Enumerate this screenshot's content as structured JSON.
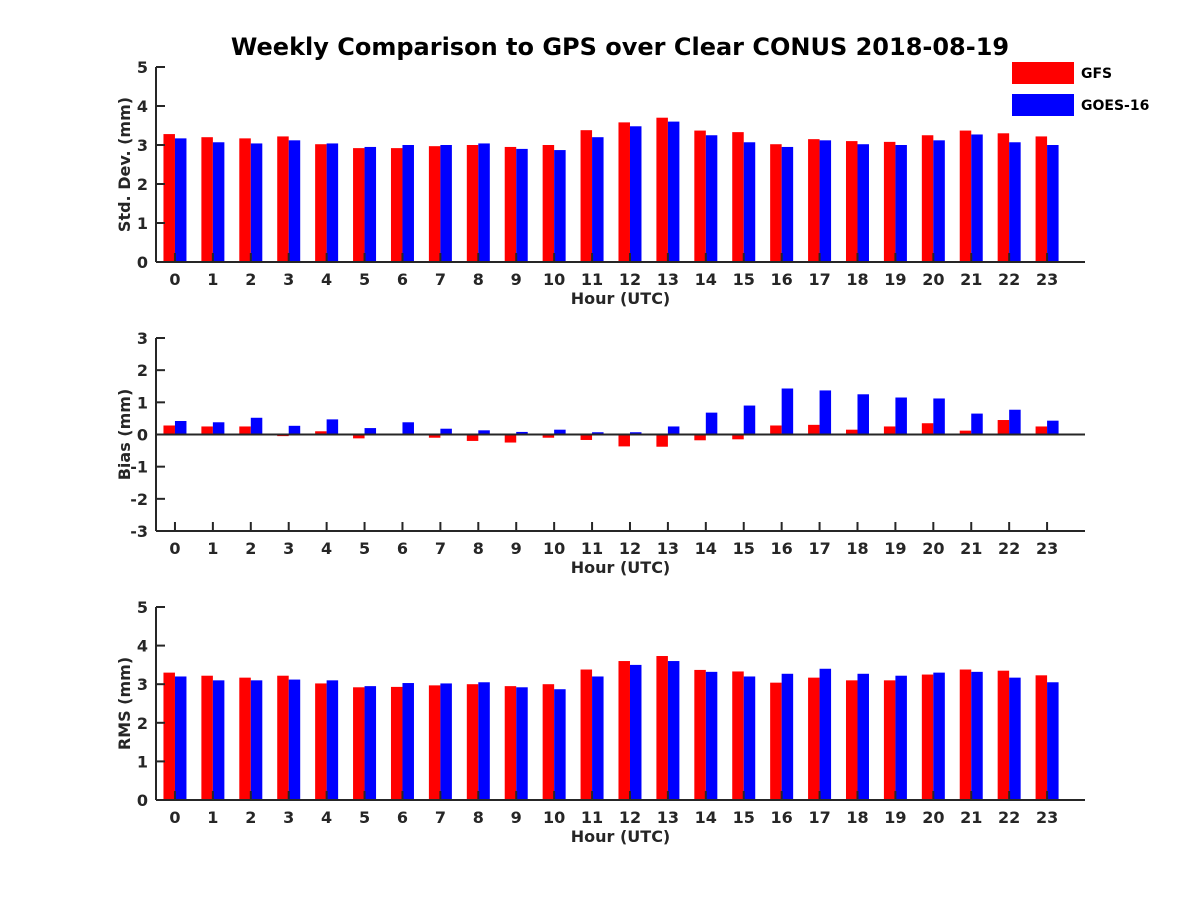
{
  "title": "Weekly Comparison to GPS over Clear CONUS 2018-08-19",
  "colors": {
    "GFS": "#ff0000",
    "GOES-16": "#0000ff",
    "axis": "#262626"
  },
  "legend": [
    {
      "name": "GFS",
      "color": "#ff0000"
    },
    {
      "name": "GOES-16",
      "color": "#0000ff"
    }
  ],
  "chart_data": [
    {
      "type": "bar",
      "xlabel": "Hour (UTC)",
      "ylabel": "Std. Dev. (mm)",
      "ylim": [
        0,
        5
      ],
      "yticks": [
        0,
        1,
        2,
        3,
        4,
        5
      ],
      "categories": [
        "0",
        "1",
        "2",
        "3",
        "4",
        "5",
        "6",
        "7",
        "8",
        "9",
        "10",
        "11",
        "12",
        "13",
        "14",
        "15",
        "16",
        "17",
        "18",
        "19",
        "20",
        "21",
        "22",
        "23"
      ],
      "series": [
        {
          "name": "GFS",
          "values": [
            3.28,
            3.2,
            3.17,
            3.22,
            3.02,
            2.92,
            2.92,
            2.97,
            3.0,
            2.95,
            3.0,
            3.38,
            3.58,
            3.7,
            3.37,
            3.33,
            3.02,
            3.15,
            3.1,
            3.08,
            3.25,
            3.37,
            3.3,
            3.22
          ]
        },
        {
          "name": "GOES-16",
          "values": [
            3.17,
            3.07,
            3.04,
            3.12,
            3.04,
            2.95,
            3.0,
            3.0,
            3.04,
            2.9,
            2.87,
            3.2,
            3.48,
            3.6,
            3.25,
            3.07,
            2.95,
            3.12,
            3.02,
            3.0,
            3.12,
            3.27,
            3.07,
            3.0
          ]
        }
      ],
      "legend": "top-right"
    },
    {
      "type": "bar",
      "xlabel": "Hour (UTC)",
      "ylabel": "Bias (mm)",
      "ylim": [
        -3,
        3
      ],
      "yticks": [
        -3,
        -2,
        -1,
        0,
        1,
        2,
        3
      ],
      "categories": [
        "0",
        "1",
        "2",
        "3",
        "4",
        "5",
        "6",
        "7",
        "8",
        "9",
        "10",
        "11",
        "12",
        "13",
        "14",
        "15",
        "16",
        "17",
        "18",
        "19",
        "20",
        "21",
        "22",
        "23"
      ],
      "series": [
        {
          "name": "GFS",
          "values": [
            0.28,
            0.25,
            0.25,
            -0.05,
            0.1,
            -0.12,
            0.0,
            -0.1,
            -0.2,
            -0.25,
            -0.1,
            -0.17,
            -0.37,
            -0.38,
            -0.18,
            -0.15,
            0.28,
            0.3,
            0.15,
            0.25,
            0.35,
            0.12,
            0.45,
            0.25
          ]
        },
        {
          "name": "GOES-16",
          "values": [
            0.42,
            0.38,
            0.52,
            0.27,
            0.47,
            0.2,
            0.38,
            0.18,
            0.13,
            0.08,
            0.15,
            0.07,
            0.07,
            0.25,
            0.68,
            0.9,
            1.43,
            1.37,
            1.25,
            1.15,
            1.12,
            0.65,
            0.77,
            0.43
          ]
        }
      ]
    },
    {
      "type": "bar",
      "xlabel": "Hour (UTC)",
      "ylabel": "RMS (mm)",
      "ylim": [
        0,
        5
      ],
      "yticks": [
        0,
        1,
        2,
        3,
        4,
        5
      ],
      "categories": [
        "0",
        "1",
        "2",
        "3",
        "4",
        "5",
        "6",
        "7",
        "8",
        "9",
        "10",
        "11",
        "12",
        "13",
        "14",
        "15",
        "16",
        "17",
        "18",
        "19",
        "20",
        "21",
        "22",
        "23"
      ],
      "series": [
        {
          "name": "GFS",
          "values": [
            3.3,
            3.22,
            3.17,
            3.22,
            3.02,
            2.92,
            2.93,
            2.97,
            3.0,
            2.95,
            3.0,
            3.38,
            3.6,
            3.73,
            3.37,
            3.33,
            3.04,
            3.17,
            3.1,
            3.1,
            3.25,
            3.38,
            3.35,
            3.23
          ]
        },
        {
          "name": "GOES-16",
          "values": [
            3.2,
            3.1,
            3.1,
            3.12,
            3.1,
            2.95,
            3.03,
            3.02,
            3.05,
            2.92,
            2.87,
            3.2,
            3.5,
            3.6,
            3.32,
            3.2,
            3.27,
            3.4,
            3.27,
            3.22,
            3.3,
            3.32,
            3.17,
            3.05
          ]
        }
      ]
    }
  ]
}
